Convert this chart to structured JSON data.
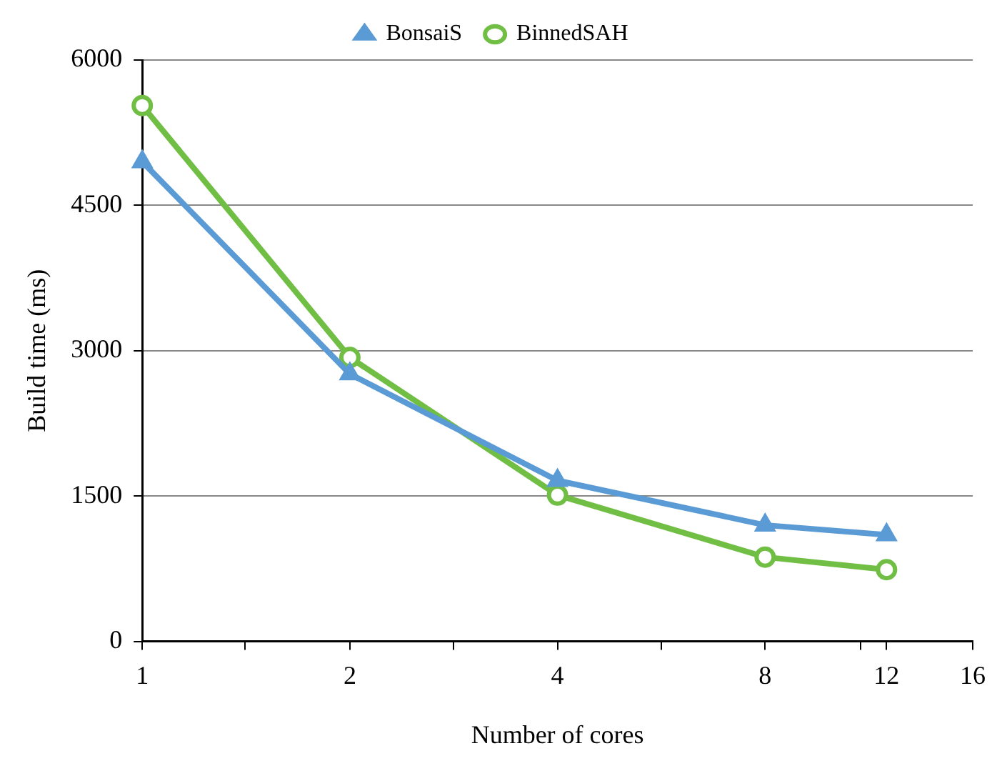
{
  "chart_data": {
    "type": "line",
    "xlabel": "Number of cores",
    "ylabel": "Build time (ms)",
    "log": "x",
    "x": [
      1,
      2,
      4,
      8,
      12
    ],
    "xlim": [
      1,
      16
    ],
    "xticks": [
      1,
      {
        "value": 1.41,
        "label": null
      },
      2,
      {
        "value": 2.83,
        "label": null
      },
      4,
      {
        "value": 5.66,
        "label": null
      },
      8,
      {
        "value": 11,
        "label": null
      },
      12,
      16
    ],
    "ylim": [
      0,
      6000
    ],
    "yticks": [
      0,
      1500,
      3000,
      4500,
      6000
    ],
    "grid": "y",
    "legend": "top",
    "series": [
      {
        "name": "BonsaiS",
        "color": "#5b9bd5",
        "marker": "triangle",
        "values": [
          4950,
          2760,
          1660,
          1200,
          1100
        ]
      },
      {
        "name": "BinnedSAH",
        "color": "#70bf44",
        "marker": "circle",
        "values": [
          5530,
          2930,
          1510,
          870,
          740
        ]
      }
    ]
  }
}
